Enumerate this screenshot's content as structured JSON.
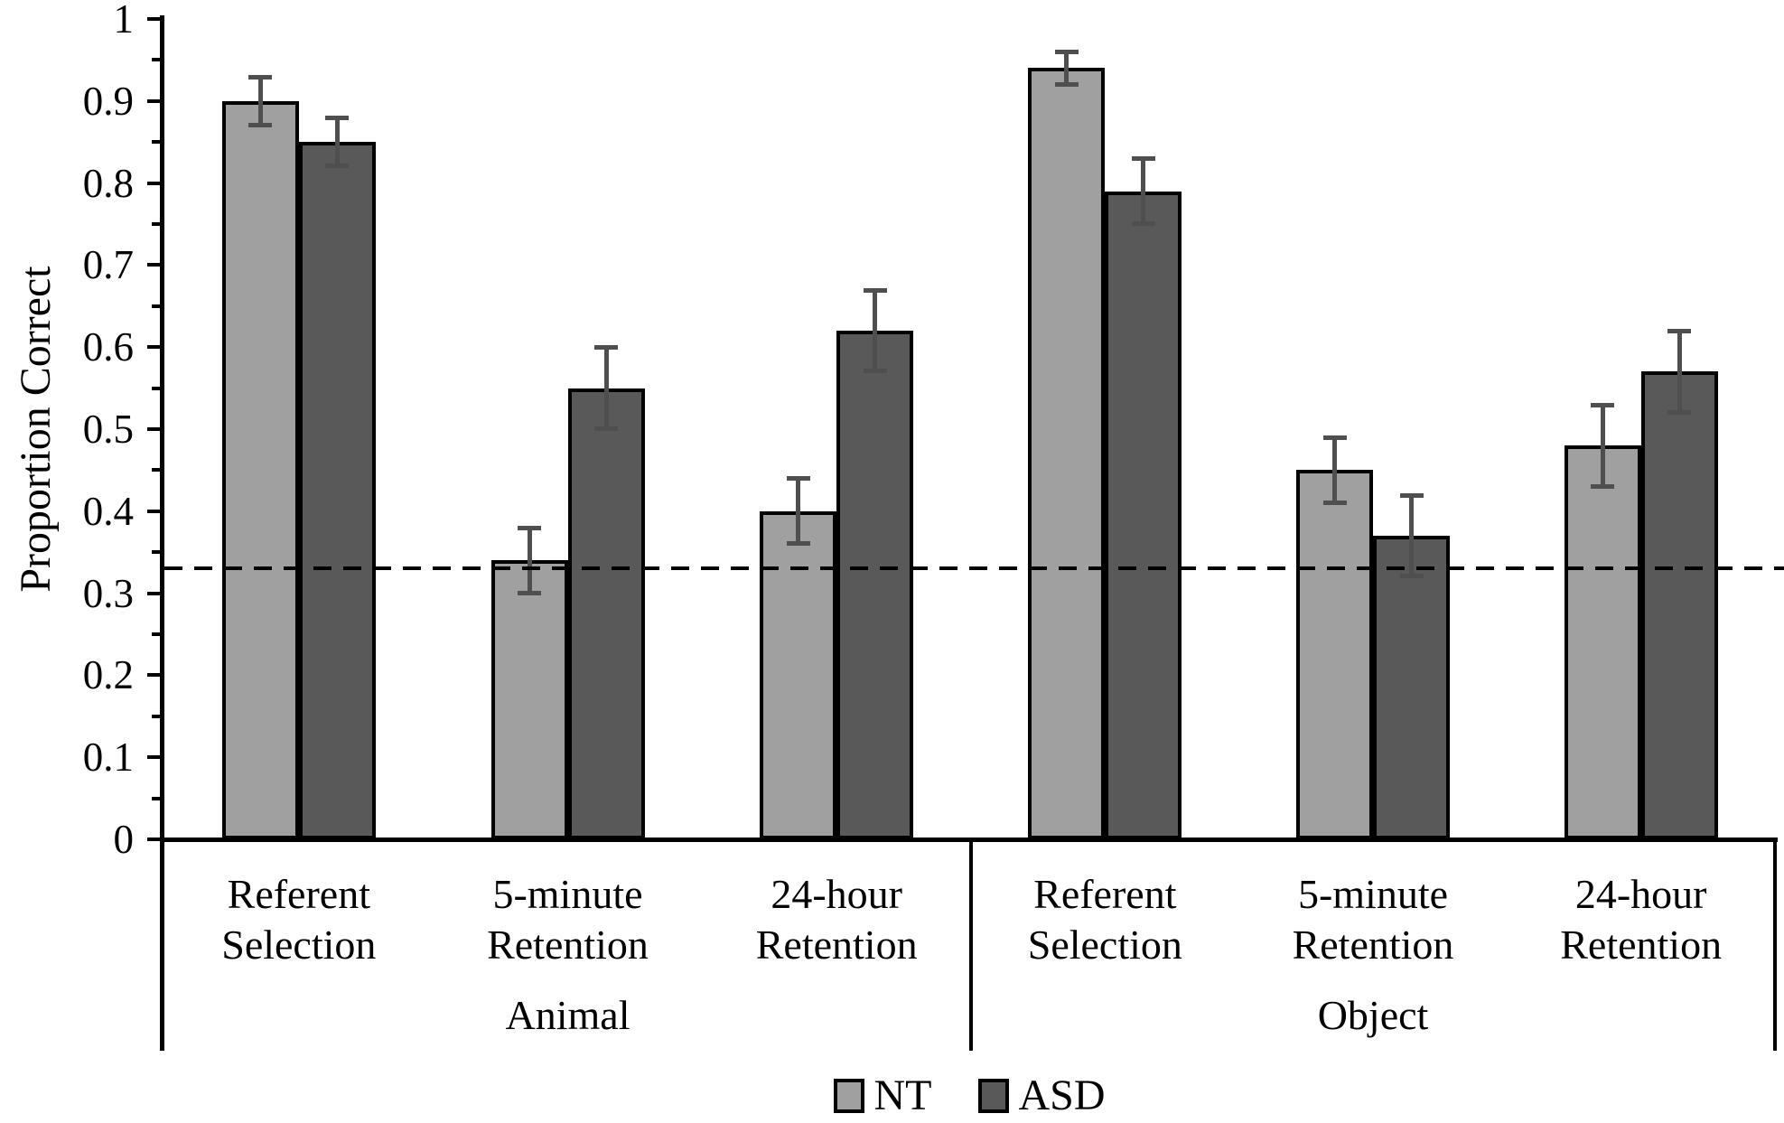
{
  "figure_title": "",
  "chart_data": {
    "type": "bar",
    "title": "",
    "xlabel": "",
    "ylabel": "Proportion Correct",
    "ylim": [
      0,
      1
    ],
    "y_tick_labels": [
      "0",
      "0.1",
      "0.2",
      "0.3",
      "0.4",
      "0.5",
      "0.6",
      "0.7",
      "0.8",
      "0.9",
      "1"
    ],
    "minor_tick_step": 0.05,
    "grid": false,
    "chance_line_y": 0.33,
    "legend_position": "bottom-center",
    "groups": [
      {
        "label": "Animal",
        "conditions": [
          "Referent\nSelection",
          "5-minute\nRetention",
          "24-hour\nRetention"
        ]
      },
      {
        "label": "Object",
        "conditions": [
          "Referent\nSelection",
          "5-minute\nRetention",
          "24-hour\nRetention"
        ]
      }
    ],
    "series": [
      {
        "name": "NT",
        "color": "#a0a0a0",
        "values": [
          0.9,
          0.34,
          0.4,
          0.94,
          0.45,
          0.48
        ],
        "errors": [
          0.03,
          0.04,
          0.04,
          0.02,
          0.04,
          0.05
        ]
      },
      {
        "name": "ASD",
        "color": "#595959",
        "values": [
          0.85,
          0.55,
          0.62,
          0.79,
          0.37,
          0.57
        ],
        "errors": [
          0.03,
          0.05,
          0.05,
          0.04,
          0.05,
          0.05
        ]
      }
    ],
    "bar_outline_color": "#000000",
    "error_bar_color": "#4f4f4f",
    "chance_line_color": "#000000"
  }
}
